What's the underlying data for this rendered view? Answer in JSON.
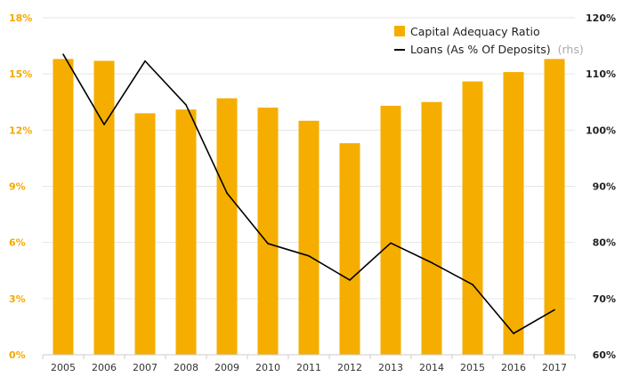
{
  "chart_data": {
    "type": "bar",
    "categories": [
      "2005",
      "2006",
      "2007",
      "2008",
      "2009",
      "2010",
      "2011",
      "2012",
      "2013",
      "2014",
      "2015",
      "2016",
      "2017"
    ],
    "series": [
      {
        "name": "Capital Adequacy Ratio",
        "type": "bar",
        "axis": "left",
        "color": "#f5ae00",
        "values": [
          15.8,
          15.7,
          12.9,
          13.1,
          13.7,
          13.2,
          12.5,
          11.3,
          13.3,
          13.5,
          14.6,
          15.1,
          15.8
        ]
      },
      {
        "name": "Loans (As % Of Deposits)",
        "name_suffix": "(rhs)",
        "type": "line",
        "axis": "right",
        "color": "#000000",
        "values": [
          113.5,
          101.0,
          112.3,
          104.5,
          88.8,
          79.8,
          77.6,
          73.3,
          79.9,
          76.4,
          72.5,
          63.8,
          68.0
        ]
      }
    ],
    "y_left": {
      "min": 0,
      "max": 18,
      "ticks": [
        0,
        3,
        6,
        9,
        12,
        15,
        18
      ],
      "unit": "%"
    },
    "y_right": {
      "min": 60,
      "max": 120,
      "ticks": [
        60,
        70,
        80,
        90,
        100,
        110,
        120
      ],
      "unit": "%"
    },
    "grid": true,
    "legend": "top-right"
  }
}
